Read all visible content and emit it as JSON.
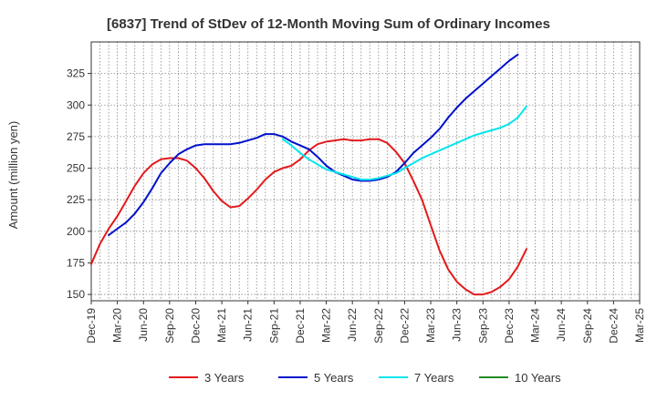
{
  "chart_data": {
    "type": "line",
    "title": "[6837]  Trend of StDev of 12-Month Moving Sum of Ordinary Incomes",
    "ylabel": "Amount (million yen)",
    "xlabel": "",
    "ylim": [
      145,
      350
    ],
    "yticks": [
      150,
      175,
      200,
      225,
      250,
      275,
      300,
      325
    ],
    "xlim": [
      0,
      63
    ],
    "xticks": [
      "Dec-19",
      "Mar-20",
      "Jun-20",
      "Sep-20",
      "Dec-20",
      "Mar-21",
      "Jun-21",
      "Sep-21",
      "Dec-21",
      "Mar-22",
      "Jun-22",
      "Sep-22",
      "Dec-22",
      "Mar-23",
      "Jun-23",
      "Sep-23",
      "Dec-23",
      "Mar-24",
      "Jun-24",
      "Sep-24",
      "Dec-24",
      "Mar-25"
    ],
    "grid": true,
    "legend_position": "bottom",
    "series": [
      {
        "name": "3 Years",
        "color": "#e31a1c",
        "points": [
          [
            0,
            174
          ],
          [
            1,
            190
          ],
          [
            2,
            202
          ],
          [
            3,
            212
          ],
          [
            4,
            224
          ],
          [
            5,
            236
          ],
          [
            6,
            246
          ],
          [
            7,
            253
          ],
          [
            8,
            257
          ],
          [
            9,
            258
          ],
          [
            10,
            258
          ],
          [
            11,
            256
          ],
          [
            12,
            250
          ],
          [
            13,
            242
          ],
          [
            14,
            232
          ],
          [
            15,
            224
          ],
          [
            16,
            219
          ],
          [
            17,
            220
          ],
          [
            18,
            226
          ],
          [
            19,
            233
          ],
          [
            20,
            241
          ],
          [
            21,
            247
          ],
          [
            22,
            250
          ],
          [
            23,
            252
          ],
          [
            24,
            257
          ],
          [
            25,
            264
          ],
          [
            26,
            269
          ],
          [
            27,
            271
          ],
          [
            28,
            272
          ],
          [
            29,
            273
          ],
          [
            30,
            272
          ],
          [
            31,
            272
          ],
          [
            32,
            273
          ],
          [
            33,
            273
          ],
          [
            34,
            270
          ],
          [
            35,
            263
          ],
          [
            36,
            254
          ],
          [
            37,
            240
          ],
          [
            38,
            225
          ],
          [
            39,
            205
          ],
          [
            40,
            185
          ],
          [
            41,
            170
          ],
          [
            42,
            160
          ],
          [
            43,
            154
          ],
          [
            44,
            150
          ],
          [
            45,
            150
          ],
          [
            46,
            152
          ],
          [
            47,
            156
          ],
          [
            48,
            162
          ],
          [
            49,
            172
          ],
          [
            50,
            186
          ]
        ]
      },
      {
        "name": "5 Years",
        "color": "#0010cc",
        "points": [
          [
            2,
            197
          ],
          [
            3,
            202
          ],
          [
            4,
            207
          ],
          [
            5,
            214
          ],
          [
            6,
            223
          ],
          [
            7,
            234
          ],
          [
            8,
            246
          ],
          [
            9,
            254
          ],
          [
            10,
            261
          ],
          [
            11,
            265
          ],
          [
            12,
            268
          ],
          [
            13,
            269
          ],
          [
            14,
            269
          ],
          [
            15,
            269
          ],
          [
            16,
            269
          ],
          [
            17,
            270
          ],
          [
            18,
            272
          ],
          [
            19,
            274
          ],
          [
            20,
            277
          ],
          [
            21,
            277
          ],
          [
            22,
            275
          ],
          [
            23,
            271
          ],
          [
            24,
            268
          ],
          [
            25,
            265
          ],
          [
            26,
            259
          ],
          [
            27,
            252
          ],
          [
            28,
            247
          ],
          [
            29,
            244
          ],
          [
            30,
            241
          ],
          [
            31,
            240
          ],
          [
            32,
            240
          ],
          [
            33,
            241
          ],
          [
            34,
            243
          ],
          [
            35,
            247
          ],
          [
            36,
            254
          ],
          [
            37,
            262
          ],
          [
            38,
            268
          ],
          [
            39,
            274
          ],
          [
            40,
            281
          ],
          [
            41,
            290
          ],
          [
            42,
            298
          ],
          [
            43,
            305
          ],
          [
            44,
            311
          ],
          [
            45,
            317
          ],
          [
            46,
            323
          ],
          [
            47,
            329
          ],
          [
            48,
            335
          ],
          [
            49,
            340
          ]
        ]
      },
      {
        "name": "7 Years",
        "color": "#00e5ee",
        "points": [
          [
            22,
            273
          ],
          [
            23,
            268
          ],
          [
            24,
            262
          ],
          [
            25,
            257
          ],
          [
            26,
            253
          ],
          [
            27,
            249
          ],
          [
            28,
            247
          ],
          [
            29,
            245
          ],
          [
            30,
            243
          ],
          [
            31,
            241
          ],
          [
            32,
            241
          ],
          [
            33,
            242
          ],
          [
            34,
            244
          ],
          [
            35,
            246
          ],
          [
            36,
            250
          ],
          [
            37,
            254
          ],
          [
            38,
            258
          ],
          [
            39,
            261
          ],
          [
            40,
            264
          ],
          [
            41,
            267
          ],
          [
            42,
            270
          ],
          [
            43,
            273
          ],
          [
            44,
            276
          ],
          [
            45,
            278
          ],
          [
            46,
            280
          ],
          [
            47,
            282
          ],
          [
            48,
            285
          ],
          [
            49,
            290
          ],
          [
            50,
            299
          ]
        ]
      },
      {
        "name": "10 Years",
        "color": "#228b22",
        "points": []
      }
    ]
  }
}
